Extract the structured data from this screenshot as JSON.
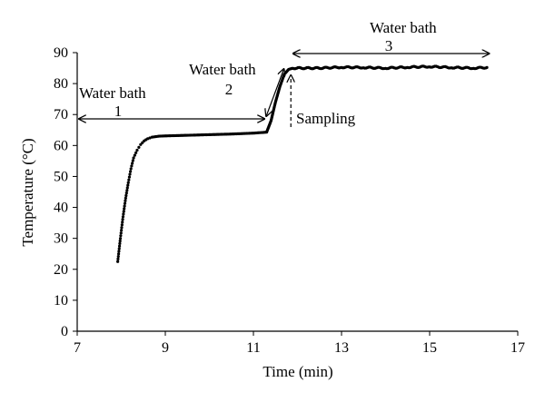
{
  "chart_data": {
    "type": "scatter",
    "xlabel": "Time (min)",
    "ylabel": "Temperature (°C)",
    "xlim": [
      7,
      17
    ],
    "ylim": [
      0,
      90
    ],
    "xticks": [
      "7",
      "9",
      "11",
      "13",
      "15",
      "17"
    ],
    "yticks": [
      "0",
      "10",
      "20",
      "30",
      "40",
      "50",
      "60",
      "70",
      "80",
      "90"
    ],
    "grid": false,
    "legend": "none",
    "series_color": "#000000",
    "series": [
      {
        "x": [
          7.92,
          7.98,
          8.04,
          8.1,
          8.16,
          8.22,
          8.28,
          8.36,
          8.44,
          8.52,
          8.6,
          8.7,
          8.85,
          9.0,
          9.5,
          10.0,
          10.5,
          11.0,
          11.3,
          11.4,
          11.5,
          11.6,
          11.7,
          11.8,
          11.9,
          12.5,
          13.0,
          13.5,
          14.0,
          14.5,
          15.0,
          15.5,
          16.0,
          16.3
        ],
        "y": [
          22.5,
          30,
          37,
          43,
          48,
          52.5,
          56,
          58.5,
          60.3,
          61.5,
          62.2,
          62.7,
          63.0,
          63.1,
          63.3,
          63.5,
          63.7,
          64.0,
          64.3,
          68,
          74,
          79,
          83,
          84.6,
          85.0,
          85.0,
          85.3,
          85.2,
          85.0,
          85.3,
          85.5,
          85.2,
          85.0,
          85.2
        ]
      }
    ],
    "annotations": [
      {
        "line1": "Water bath",
        "line2": "1",
        "span": [
          7,
          11.25
        ],
        "type": "double-arrow"
      },
      {
        "line1": "Water bath",
        "line2": "2",
        "span": [
          11.25,
          11.65
        ],
        "type": "double-arrow"
      },
      {
        "line1": "Water bath",
        "line2": "3",
        "span": [
          11.9,
          16.35
        ],
        "type": "double-arrow"
      },
      {
        "text": "Sampling",
        "at_x": 11.85,
        "type": "dashed-arrow"
      }
    ]
  }
}
